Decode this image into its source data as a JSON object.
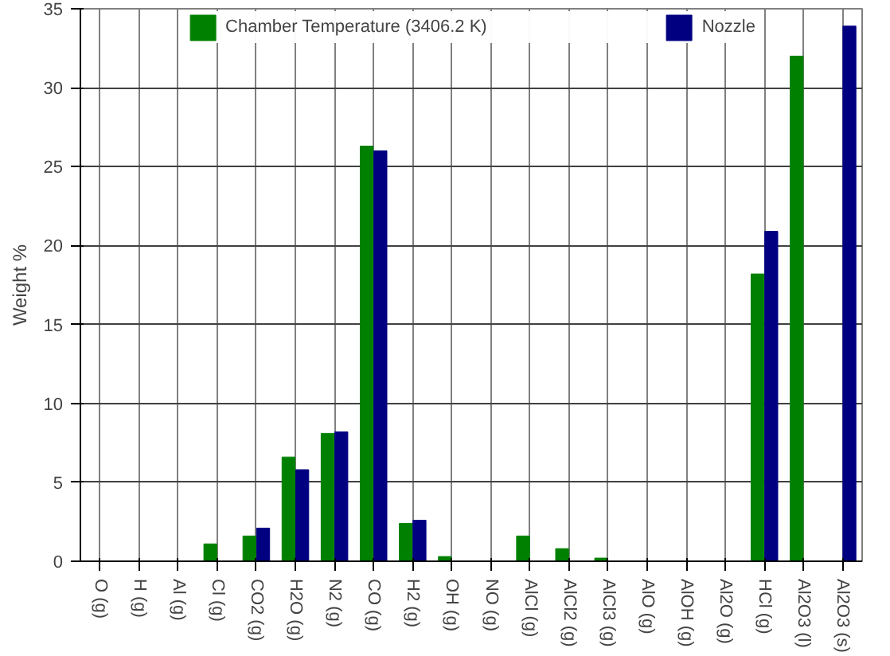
{
  "chart_data": {
    "type": "bar",
    "ylabel": "Weight %",
    "categories": [
      "O (g)",
      "H (g)",
      "Al (g)",
      "Cl (g)",
      "CO2 (g)",
      "H2O (g)",
      "N2 (g)",
      "CO (g)",
      "H2 (g)",
      "OH (g)",
      "NO (g)",
      "AlCl (g)",
      "AlCl2 (g)",
      "AlCl3 (g)",
      "AlO (g)",
      "AlOH (g)",
      "Al2O (g)",
      "HCl (g)",
      "Al2O3 (l)",
      "Al2O3 (s)"
    ],
    "series": [
      {
        "name": "Chamber Temperature (3406.2 K)",
        "color": "#008000",
        "values": [
          0,
          0,
          0,
          1.1,
          1.6,
          6.6,
          8.1,
          26.3,
          2.4,
          0.3,
          0,
          1.6,
          0.8,
          0.2,
          0,
          0,
          0,
          18.2,
          32.0,
          0
        ]
      },
      {
        "name": "Nozzle",
        "color": "#000080",
        "values": [
          0,
          0,
          0,
          0,
          2.1,
          5.8,
          8.2,
          26.0,
          2.6,
          0,
          0,
          0,
          0,
          0,
          0,
          0,
          0,
          20.9,
          0,
          33.9
        ]
      }
    ],
    "ylim": [
      0,
      35
    ],
    "yticks": [
      0,
      5,
      10,
      15,
      20,
      25,
      30,
      35
    ],
    "grid": true,
    "legend": "top"
  }
}
